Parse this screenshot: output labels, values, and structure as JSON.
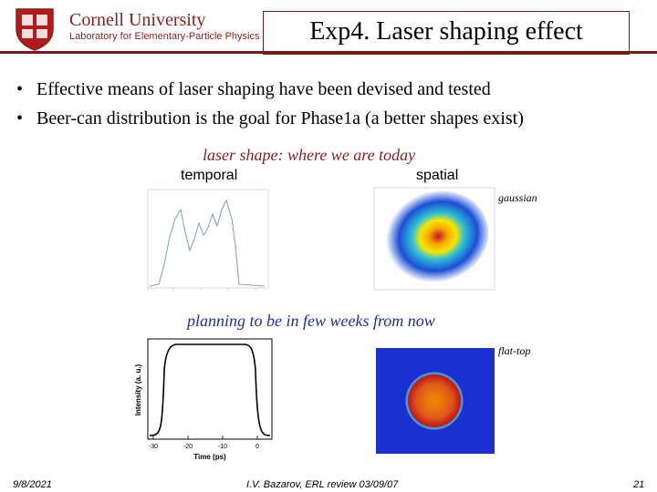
{
  "header": {
    "university": "Cornell University",
    "laboratory": "Laboratory for Elementary-Particle Physics",
    "slide_title": "Exp4. Laser shaping effect"
  },
  "bullets": [
    "Effective means of laser shaping have been devised and tested",
    "Beer-can distribution is the goal for Phase1a (a better shapes exist)"
  ],
  "section_today": {
    "caption": "laser shape: where we are today",
    "temporal_label": "temporal",
    "spatial_label": "spatial",
    "spatial_note": "gaussian"
  },
  "section_future": {
    "caption": "planning to be in few weeks from now",
    "spatial_note": "flat-top",
    "plot": {
      "ylabel": "Intensity (a. u.)",
      "xlabel": "Time (ps)",
      "x_ticks": [
        "-30",
        "-20",
        "-10",
        "0"
      ]
    }
  },
  "footer": {
    "date": "9/8/2021",
    "citation": "I.V. Bazarov, ERL review 03/09/07",
    "page": "21"
  },
  "colors": {
    "brand": "#8a1f1f",
    "caption_blue": "#1f2f9a",
    "title_border": "#7a1717"
  }
}
